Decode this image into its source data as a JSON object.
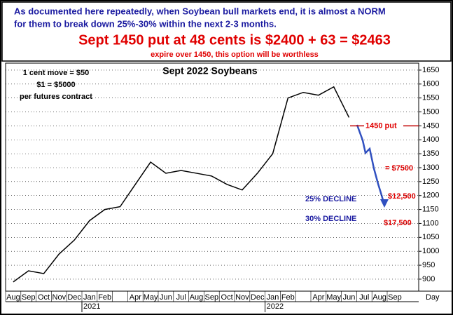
{
  "header": {
    "line1": "As documented here repeatedly, when Soybean bull markets end, it is almost a NORM",
    "line2": "for them to break down 25%-30% within the next 2-3 months.",
    "headline": "Sept 1450 put at 48 cents is $2400 + 63 = $2463",
    "subline": "expire over 1450, this option will be worthless"
  },
  "chart_data": {
    "type": "line",
    "title": "Sept 2022 Soybeans",
    "notes": [
      "1 cent move = $50",
      "$1 = $5000",
      "per futures contract"
    ],
    "annotations": {
      "put": "1450 put",
      "level1": "= $7500",
      "level2": "$12,500",
      "level3": "$17,500",
      "decline25": "25% DECLINE",
      "decline30": "30% DECLINE"
    },
    "categories": [
      "Aug",
      "Sep",
      "Oct",
      "Nov",
      "Dec",
      "Jan",
      "Feb",
      null,
      "Apr",
      "May",
      "Jun",
      "Jul",
      "Aug",
      "Sep",
      "Oct",
      "Nov",
      "Dec",
      "Jan",
      "Feb",
      null,
      "Apr",
      "May",
      "Jun",
      "Jul",
      "Aug",
      "Sep"
    ],
    "years": [
      {
        "label": "2021",
        "index": 5
      },
      {
        "label": "2022",
        "index": 17
      }
    ],
    "x_unit_label": "Day",
    "series": [
      {
        "name": "Sept 2022 Soybeans",
        "color": "#000000",
        "values": [
          890,
          930,
          920,
          990,
          1040,
          1110,
          1150,
          1160,
          1240,
          1320,
          1280,
          1290,
          1280,
          1270,
          1240,
          1220,
          1280,
          1350,
          1550,
          1570,
          1560,
          1590,
          1480,
          null,
          null,
          null
        ]
      }
    ],
    "ylim": [
      857,
      1675
    ],
    "yticks": [
      900,
      950,
      1000,
      1050,
      1100,
      1150,
      1200,
      1250,
      1300,
      1350,
      1400,
      1450,
      1500,
      1550,
      1600,
      1650
    ],
    "grid": true,
    "put_level": 1450
  }
}
